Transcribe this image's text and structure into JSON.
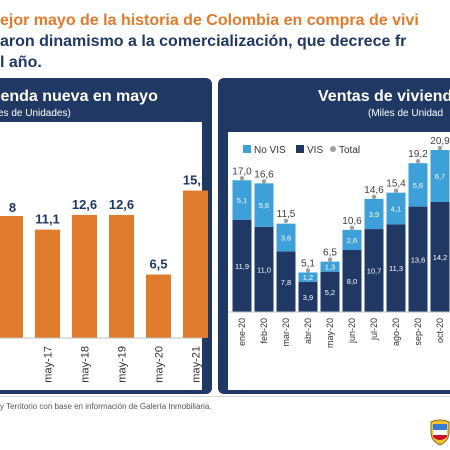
{
  "headline": {
    "line1": "ejor mayo de la historia de Colombia en compra de vivi",
    "line2": "aron dinamismo a la comercialización, que decrece fr",
    "line3": "l año."
  },
  "source_note": "y Territorio con base en información de Galería Inmobiliaria.",
  "colors": {
    "orange_bar": "#e07a2c",
    "vis": "#1f3864",
    "no_vis": "#3ea0d8",
    "total_marker": "#9e9e9e",
    "panel_bg": "#1f3864"
  },
  "emblem_icon": "colombia-coat-of-arms-icon",
  "chart_data": [
    {
      "type": "bar",
      "title": "ienda nueva en mayo",
      "subtitle": "es de Unidades)",
      "categories": [
        "",
        "may-17",
        "may-18",
        "may-19",
        "may-20",
        "may-21"
      ],
      "values": [
        null,
        11.1,
        12.6,
        12.6,
        6.5,
        15.1
      ],
      "value_labels": [
        "8",
        "11,1",
        "12,6",
        "12,6",
        "6,5",
        "15,1"
      ],
      "ylim": [
        0,
        17
      ]
    },
    {
      "type": "bar",
      "stacked": true,
      "title": "Ventas de viviend",
      "subtitle": "(Miles de Unidad",
      "legend": [
        "No VIS",
        "VIS",
        "Total"
      ],
      "legend_position": "top-left",
      "categories": [
        "ene-20",
        "feb-20",
        "mar-20",
        "abr-20",
        "may-20",
        "jun-20",
        "jul-20",
        "ago-20",
        "sep-20",
        "oct-20"
      ],
      "series": [
        {
          "name": "VIS",
          "values": [
            11.9,
            11.0,
            7.8,
            3.9,
            5.2,
            8.0,
            10.7,
            11.3,
            13.6,
            14.2
          ],
          "labels": [
            "11,9",
            "11,0",
            "7,8",
            "3,9",
            "5,2",
            "8,0",
            "10,7",
            "11,3",
            "13,6",
            "14,2"
          ]
        },
        {
          "name": "No VIS",
          "values": [
            5.1,
            5.6,
            3.6,
            1.2,
            1.3,
            2.6,
            3.9,
            4.1,
            5.6,
            6.7
          ],
          "labels": [
            "5,1",
            "5,6",
            "3,6",
            "1,2",
            "1,3",
            "2,6",
            "3,9",
            "4,1",
            "5,6",
            "6,7"
          ]
        }
      ],
      "totals": [
        17.0,
        16.6,
        11.5,
        5.1,
        6.5,
        10.6,
        14.6,
        15.4,
        19.2,
        20.9
      ],
      "total_labels": [
        "17,0",
        "16,6",
        "11,5",
        "5,1",
        "6,5",
        "10,6",
        "14,6",
        "15,4",
        "19,2",
        "20,9"
      ],
      "ylim": [
        0,
        22
      ]
    }
  ]
}
